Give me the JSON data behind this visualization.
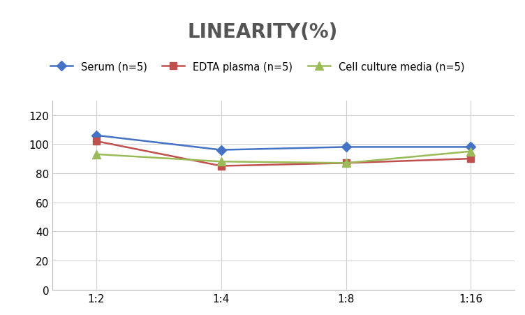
{
  "title": "LINEARITY(%)",
  "x_labels": [
    "1:2",
    "1:4",
    "1:8",
    "1:16"
  ],
  "x_positions": [
    0,
    1,
    2,
    3
  ],
  "series": [
    {
      "label": "Serum (n=5)",
      "values": [
        106,
        96,
        98,
        98
      ],
      "color": "#4472C4",
      "marker": "D",
      "linewidth": 1.8,
      "markersize": 7
    },
    {
      "label": "EDTA plasma (n=5)",
      "values": [
        102,
        85,
        87,
        90
      ],
      "color": "#C0504D",
      "marker": "s",
      "linewidth": 1.8,
      "markersize": 7
    },
    {
      "label": "Cell culture media (n=5)",
      "values": [
        93,
        88,
        87,
        95
      ],
      "color": "#9BBB59",
      "marker": "^",
      "linewidth": 1.8,
      "markersize": 8
    }
  ],
  "ylim": [
    0,
    130
  ],
  "yticks": [
    0,
    20,
    40,
    60,
    80,
    100,
    120
  ],
  "background_color": "#ffffff",
  "grid_color": "#d0d0d0",
  "title_fontsize": 20,
  "title_color": "#555555",
  "legend_fontsize": 10.5,
  "tick_fontsize": 11
}
